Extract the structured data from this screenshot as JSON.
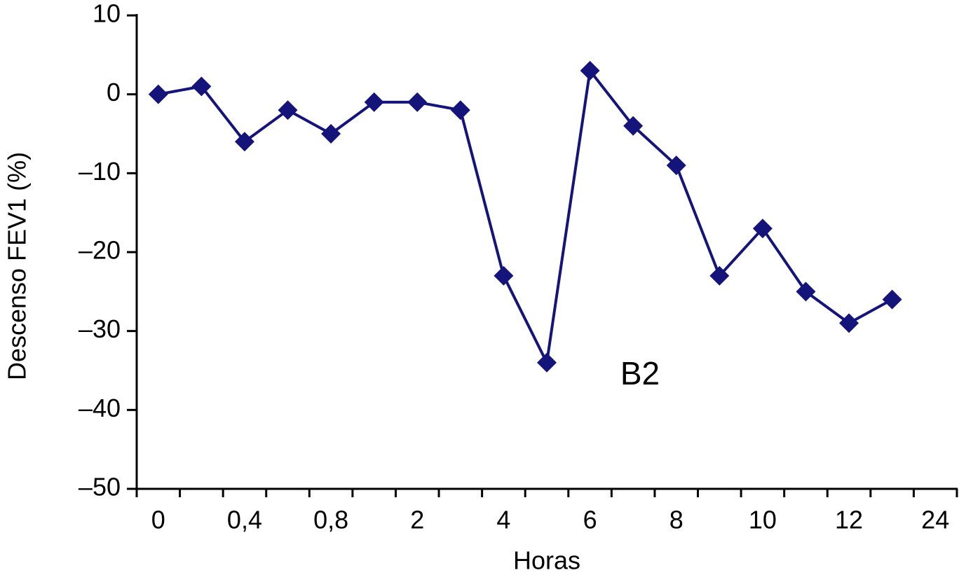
{
  "chart_data": {
    "type": "line",
    "ylabel": "Descenso FEV1 (%)",
    "xlabel": "Horas",
    "annotation": "B2",
    "categories": [
      "0",
      null,
      "0,4",
      null,
      "0,8",
      null,
      "2",
      null,
      "4",
      null,
      "6",
      null,
      "8",
      null,
      "10",
      null,
      "12",
      null,
      "24"
    ],
    "series": [
      {
        "color": "#14147a",
        "values": [
          0,
          1,
          -6,
          -2,
          -5,
          -1,
          -1,
          -2,
          -23,
          -34,
          3,
          -4,
          -9,
          -23,
          -17,
          -25,
          -29,
          -26,
          null
        ]
      }
    ],
    "ylim": [
      -50,
      10
    ],
    "yticks": [
      {
        "value": -50,
        "label": "–50"
      },
      {
        "value": -40,
        "label": "–40"
      },
      {
        "value": -30,
        "label": "–30"
      },
      {
        "value": -20,
        "label": "–20"
      },
      {
        "value": -10,
        "label": "–10"
      },
      0,
      10
    ],
    "grid": false
  }
}
